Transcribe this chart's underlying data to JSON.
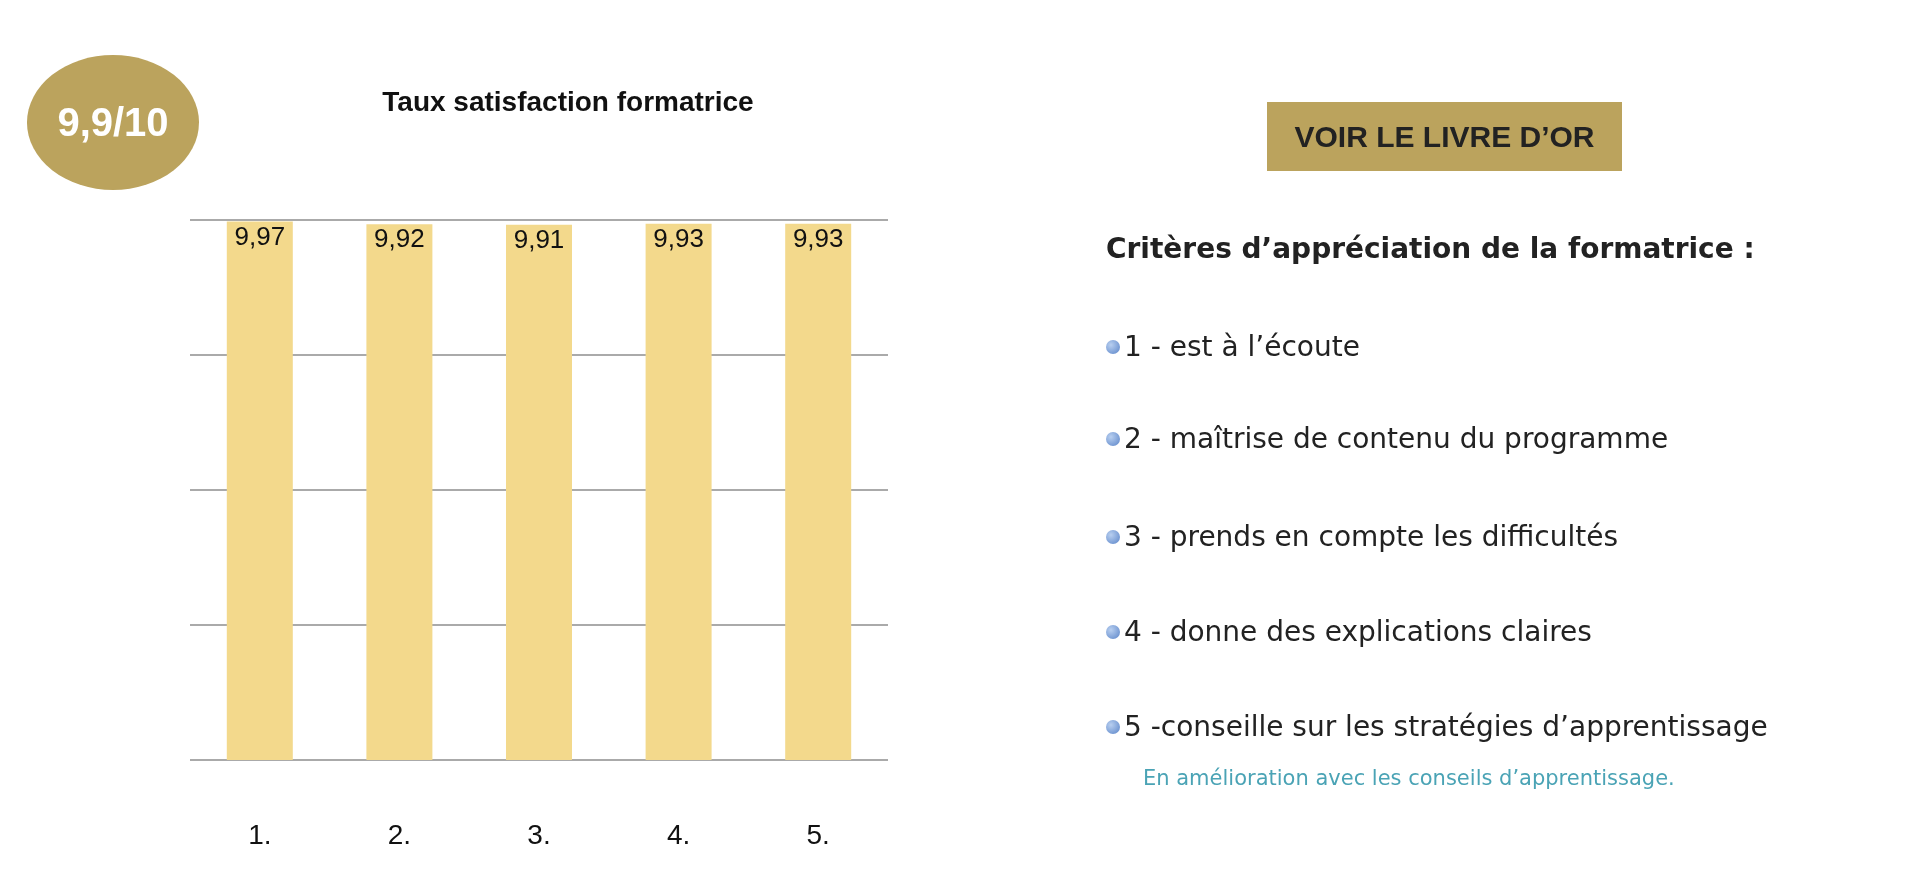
{
  "chart_data": {
    "type": "bar",
    "title": "Taux satisfaction formatrice",
    "categories": [
      "1.",
      "2.",
      "3.",
      "4.",
      "5."
    ],
    "values": [
      9.97,
      9.92,
      9.91,
      9.93,
      9.93
    ],
    "value_labels": [
      "9,97",
      "9,92",
      "9,91",
      "9,93",
      "9,93"
    ],
    "color": "#f3d98c",
    "ylim": [
      0,
      10
    ],
    "yticks": [
      {
        "value": 0,
        "label": null
      },
      {
        "value": 2.5,
        "label": null
      },
      {
        "value": 5,
        "label": null
      },
      {
        "value": 7.5,
        "label": null
      },
      {
        "value": 10,
        "label": null
      }
    ],
    "tick_labels": "x",
    "grid": "y",
    "annotations": [
      "9,9/10",
      "VOIR LE LIVRE D’OR",
      "Critères d’appréciation de la formatrice :",
      "1 - est à l’écoute",
      "2 - maîtrise de contenu du programme",
      "3 - prends en compte les difficultés",
      "4 - donne des explications claires",
      "5 -conseille sur les stratégies d’apprentissage",
      "En amélioration avec les conseils d’apprentissage."
    ]
  }
}
